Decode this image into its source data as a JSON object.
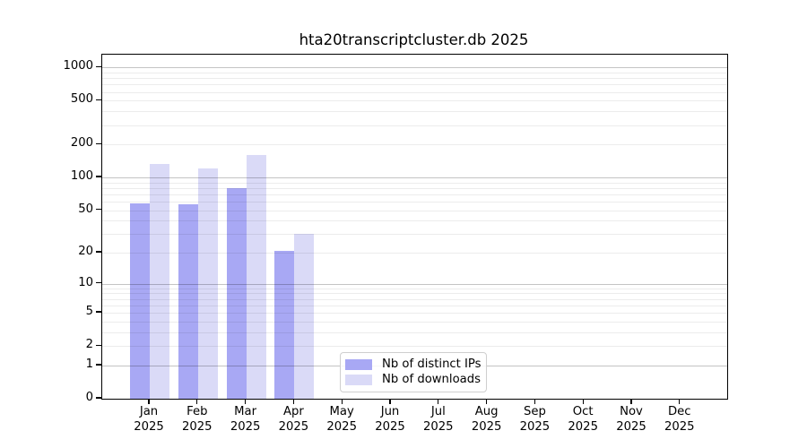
{
  "chart_data": {
    "type": "bar",
    "title": "hta20transcriptcluster.db 2025",
    "y_scale": "log1p",
    "grid": true,
    "x_categories": [
      "Jan",
      "Feb",
      "Mar",
      "Apr",
      "May",
      "Jun",
      "Jul",
      "Aug",
      "Sep",
      "Oct",
      "Nov",
      "Dec"
    ],
    "x_year_label": "2025",
    "series": [
      {
        "name": "Nb of distinct IPs",
        "color": "#a8a8f4",
        "values": [
          58,
          57,
          80,
          21,
          0,
          0,
          0,
          0,
          0,
          0,
          0,
          0
        ]
      },
      {
        "name": "Nb of downloads",
        "color": "#dadaf7",
        "values": [
          133,
          122,
          159,
          30,
          0,
          0,
          0,
          0,
          0,
          0,
          0,
          0
        ]
      }
    ],
    "y_axis": {
      "tick_labels": [
        0,
        1,
        2,
        5,
        10,
        20,
        50,
        100,
        200,
        500,
        1000
      ],
      "major_gridlines": [
        1,
        10,
        100,
        1000
      ],
      "minor_gridlines": [
        2,
        3,
        4,
        5,
        6,
        7,
        8,
        9,
        20,
        30,
        40,
        50,
        60,
        70,
        80,
        90,
        200,
        300,
        400,
        500,
        600,
        700,
        800,
        900
      ],
      "ylim": [
        0,
        1309
      ]
    },
    "legend": {
      "location": "lower center",
      "entries": [
        {
          "label": "Nb of distinct IPs",
          "color": "#a8a8f4"
        },
        {
          "label": "Nb of downloads",
          "color": "#dadaf7"
        }
      ]
    }
  },
  "colors": {
    "background": "#ffffff",
    "bar_distinct_ips": "#a8a8f4",
    "bar_downloads": "#dadaf7",
    "gridline_major": "#c4c4c4",
    "gridline_minor": "#ececec",
    "axis_spine": "#000000",
    "legend_border": "#cfcfcf"
  }
}
